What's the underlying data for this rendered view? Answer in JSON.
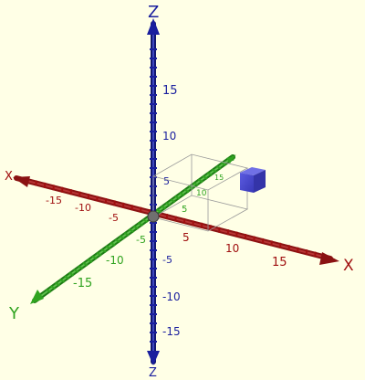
{
  "scene": {
    "background": "#ffffe6",
    "axes": {
      "x": {
        "name_pos": "X",
        "name_neg": "X",
        "color": "#a01010",
        "label_color": "#a01010",
        "ticks": [
          "-15",
          "-10",
          "-5",
          "5",
          "10",
          "15"
        ]
      },
      "y": {
        "name_pos": "Y",
        "name_neg": "Y",
        "color": "#2fa31f",
        "label_color": "#2fa31f",
        "ticks": [
          "-15",
          "-10",
          "-5",
          "5",
          "10",
          "15"
        ]
      },
      "z": {
        "name_pos": "Z",
        "name_neg": "Z",
        "color": "#1a1f9e",
        "label_color": "#1a1f9e",
        "ticks": [
          "-15",
          "-10",
          "-5",
          "5",
          "10",
          "15"
        ]
      }
    },
    "point": {
      "x": 10,
      "y": 10,
      "z": 5,
      "color": "#4d4dd6"
    },
    "guide_box_color": "#9a9a9a"
  }
}
